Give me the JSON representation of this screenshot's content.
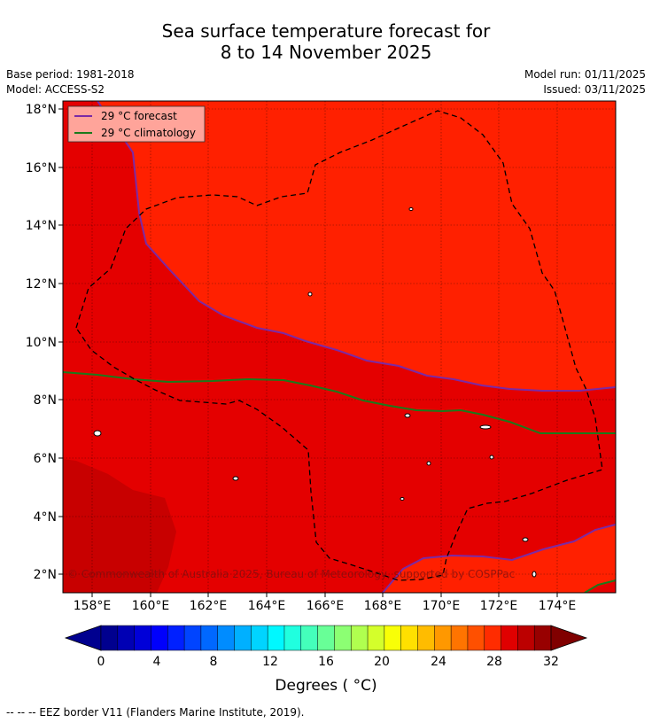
{
  "title_line1": "Sea surface temperature forecast for",
  "title_line2": "8 to 14 November 2025",
  "base_period": "Base period: 1981-2018",
  "model": "Model: ACCESS-S2",
  "model_run": "Model run: 01/11/2025",
  "issued": "Issued: 03/11/2025",
  "legend": {
    "forecast": "29 °C  forecast",
    "climatology": "29 °C  climatology",
    "forecast_color": "#7b2aa5",
    "climatology_color": "#1b7a1b"
  },
  "copyright": "© Commonwealth of Australia 2025, Bureau of Meteorology, supported by COSPPac",
  "lat_labels": [
    "18°N",
    "16°N",
    "14°N",
    "12°N",
    "10°N",
    "8°N",
    "6°N",
    "4°N",
    "2°N"
  ],
  "lon_labels": [
    "158°E",
    "160°E",
    "162°E",
    "164°E",
    "166°E",
    "168°E",
    "170°E",
    "172°E",
    "174°E"
  ],
  "colorbar": {
    "ticks": [
      "0",
      "4",
      "8",
      "12",
      "16",
      "20",
      "24",
      "28",
      "32"
    ],
    "unit_label": "Degrees ( °C)",
    "colors": [
      "#00008f",
      "#0000b4",
      "#0000d8",
      "#0000fc",
      "#0020ff",
      "#0044ff",
      "#0068ff",
      "#008cff",
      "#00b0ff",
      "#00d4ff",
      "#00f8ff",
      "#20ffdf",
      "#44ffbb",
      "#68ff97",
      "#8cff73",
      "#b0ff4f",
      "#d4ff2b",
      "#f8ff07",
      "#ffe000",
      "#ffbc00",
      "#ff9800",
      "#ff7400",
      "#ff5000",
      "#ff2c00",
      "#e00000",
      "#bc0000",
      "#980000"
    ],
    "under_color": "#00008f",
    "over_color": "#800000"
  },
  "field_colors": {
    "warm": "#ff2000",
    "warmer": "#e40000",
    "warmest": "#c80000"
  },
  "eez_note": "--  --  -- EEZ border V11 (Flanders Marine Institute, 2019)."
}
